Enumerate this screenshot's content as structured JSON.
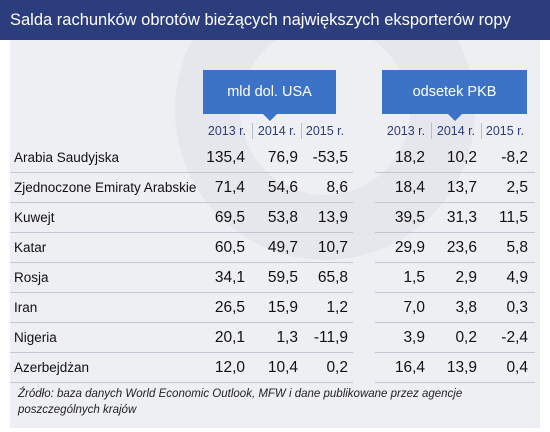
{
  "title": "Salda rachunków obrotów bieżących największych eksporterów ropy",
  "groups": [
    {
      "label": "mld dol. USA",
      "years": [
        "2013 r.",
        "2014 r.",
        "2015 r."
      ]
    },
    {
      "label": "odsetek PKB",
      "years": [
        "2013 r.",
        "2014 r.",
        "2015 r."
      ]
    }
  ],
  "rows": [
    {
      "country": "Arabia Saudyjska",
      "values": [
        "135,4",
        "76,9",
        "-53,5",
        "18,2",
        "10,2",
        "-8,2"
      ]
    },
    {
      "country": "Zjednoczone Emiraty Arabskie",
      "values": [
        "71,4",
        "54,6",
        "8,6",
        "18,4",
        "13,7",
        "2,5"
      ]
    },
    {
      "country": "Kuwejt",
      "values": [
        "69,5",
        "53,8",
        "13,9",
        "39,5",
        "31,3",
        "11,5"
      ]
    },
    {
      "country": "Katar",
      "values": [
        "60,5",
        "49,7",
        "10,7",
        "29,9",
        "23,6",
        "5,8"
      ]
    },
    {
      "country": "Rosja",
      "values": [
        "34,1",
        "59,5",
        "65,8",
        "1,5",
        "2,9",
        "4,9"
      ]
    },
    {
      "country": "Iran",
      "values": [
        "26,5",
        "15,9",
        "1,2",
        "7,0",
        "3,8",
        "0,3"
      ]
    },
    {
      "country": "Nigeria",
      "values": [
        "20,1",
        "1,3",
        "-11,9",
        "3,9",
        "0,2",
        "-2,4"
      ]
    },
    {
      "country": "Azerbejdżan",
      "values": [
        "12,0",
        "10,4",
        "0,2",
        "16,4",
        "13,9",
        "0,4"
      ]
    }
  ],
  "source": "Źródło: baza danych World Economic Outlook, MFW i dane publikowane przez agencje poszczególnych krajów",
  "colors": {
    "title_bg": "#2b3d7d",
    "header_bg": "#3d73c6",
    "panel_bg": "#eeeff2"
  }
}
